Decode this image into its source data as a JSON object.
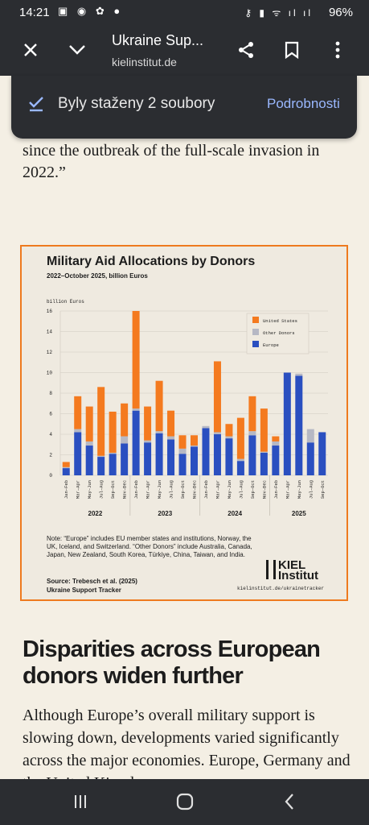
{
  "status_bar": {
    "time": "14:21",
    "battery": "96%"
  },
  "toolbar": {
    "title": "Ukraine Sup...",
    "url": "kielinstitut.de"
  },
  "toast": {
    "message": "Byly staženy 2 soubory",
    "action": "Podrobnosti"
  },
  "article": {
    "quote_tail": "since the outbreak of the full-scale invasion in 2022.”",
    "heading": "Disparities across European donors widen further",
    "paragraph": "Although Europe’s overall military support is slowing down, developments varied significantly across the major economies. Europe, Germany and the United Kingdom"
  },
  "figure": {
    "note": "Note: “Europe” includes EU member states and institutions, Norway, the UK, Iceland, and Switzerland. “Other Donors” include Australia, Canada, Japan, New Zealand, South Korea, Türkiye, China, Taiwan, and India.",
    "source_line1": "Source: Trebesch et al. (2025)",
    "source_line2": "Ukraine Support Tracker",
    "logo_line1": "KIEL",
    "logo_line2": "Institut",
    "url": "kielinstitut.de/ukrainetracker"
  },
  "chart_data": {
    "type": "bar",
    "stacked": true,
    "title": "Military Aid Allocations by Donors",
    "subtitle": "2022–October 2025, billion Euros",
    "ylabel": "billion Euros",
    "ylim": [
      0,
      16
    ],
    "yticks": [
      0,
      2,
      4,
      6,
      8,
      10,
      12,
      14,
      16
    ],
    "grid": true,
    "legend_position": "top-right",
    "categories": [
      "Jan–Feb",
      "Mar–Apr",
      "May–Jun",
      "Jul–Aug",
      "Sep–Oct",
      "Nov–Dec",
      "Jan–Feb",
      "Mar–Apr",
      "May–Jun",
      "Jul–Aug",
      "Sep–Oct",
      "Nov–Dec",
      "Jan–Feb",
      "Mar–Apr",
      "May–Jun",
      "Jul–Aug",
      "Sep–Oct",
      "Nov–Dec",
      "Jan–Feb",
      "Mar–Apr",
      "May–Jun",
      "Jul–Aug",
      "Sep–Oct"
    ],
    "years": [
      {
        "label": "2022",
        "start": 0,
        "count": 6
      },
      {
        "label": "2023",
        "start": 6,
        "count": 6
      },
      {
        "label": "2024",
        "start": 12,
        "count": 6
      },
      {
        "label": "2025",
        "start": 18,
        "count": 5
      }
    ],
    "series": [
      {
        "name": "Europe",
        "color": "#2a4fc0",
        "values": [
          0.7,
          4.2,
          2.9,
          1.8,
          2.1,
          3.1,
          6.3,
          3.2,
          4.1,
          3.5,
          2.1,
          2.8,
          4.6,
          4.0,
          3.6,
          1.4,
          3.9,
          2.2,
          2.9,
          10.0,
          9.7,
          3.2,
          4.2
        ]
      },
      {
        "name": "Other Donors",
        "color": "#b6b8c4",
        "values": [
          0.1,
          0.3,
          0.4,
          0.1,
          0.1,
          0.7,
          0.2,
          0.2,
          0.2,
          0.3,
          0.5,
          0.1,
          0.2,
          0.2,
          0.2,
          0.2,
          0.4,
          0.1,
          0.4,
          0.0,
          0.2,
          1.3,
          0.0
        ]
      },
      {
        "name": "United States",
        "color": "#f47a1f",
        "values": [
          0.5,
          3.2,
          3.4,
          6.7,
          4.0,
          3.2,
          9.5,
          3.3,
          4.9,
          2.5,
          1.3,
          1.0,
          0.0,
          6.9,
          1.2,
          4.0,
          3.4,
          4.2,
          0.5,
          0.0,
          0.0,
          0.0,
          0.0
        ]
      }
    ],
    "legend_order": [
      "United States",
      "Other Donors",
      "Europe"
    ]
  },
  "navbar": {
    "recents": "recents",
    "home": "home",
    "back": "back"
  }
}
